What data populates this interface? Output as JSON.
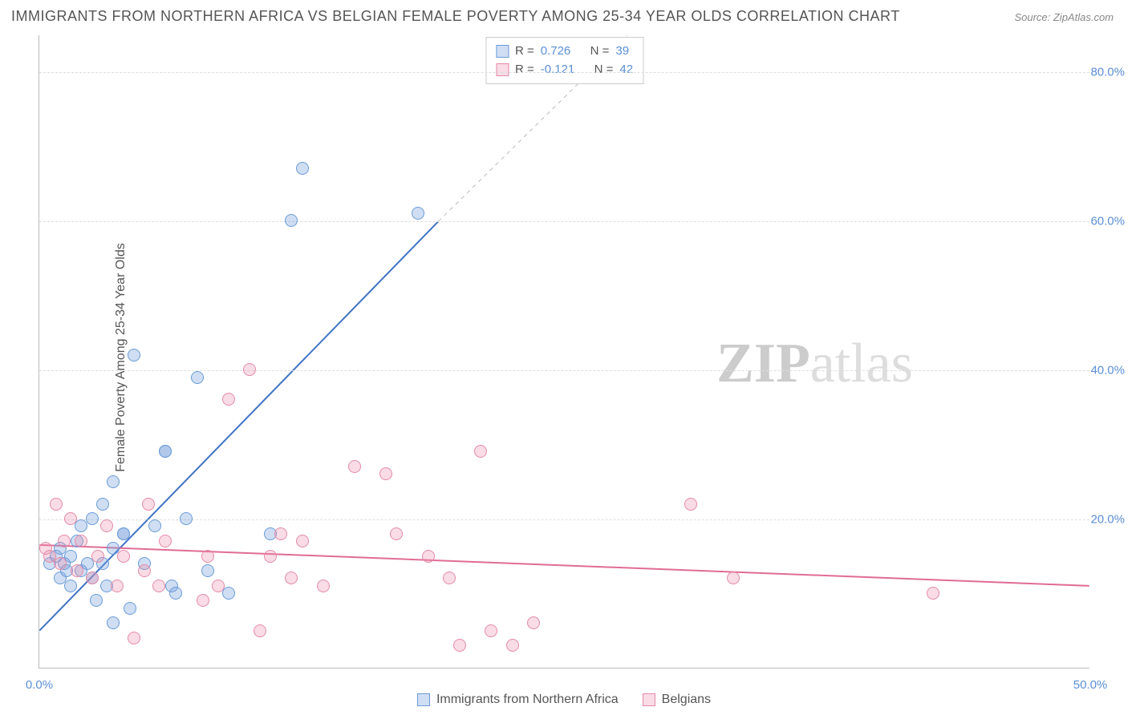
{
  "title": "IMMIGRANTS FROM NORTHERN AFRICA VS BELGIAN FEMALE POVERTY AMONG 25-34 YEAR OLDS CORRELATION CHART",
  "source": "Source: ZipAtlas.com",
  "ylabel": "Female Poverty Among 25-34 Year Olds",
  "watermark_a": "ZIP",
  "watermark_b": "atlas",
  "chart": {
    "type": "scatter",
    "xlim": [
      0,
      50
    ],
    "ylim": [
      0,
      85
    ],
    "xticks": [
      {
        "v": 0,
        "l": "0.0%"
      },
      {
        "v": 50,
        "l": "50.0%"
      }
    ],
    "yticks": [
      {
        "v": 20,
        "l": "20.0%"
      },
      {
        "v": 40,
        "l": "40.0%"
      },
      {
        "v": 60,
        "l": "60.0%"
      },
      {
        "v": 80,
        "l": "80.0%"
      }
    ],
    "grid_color": "#dddddd",
    "background_color": "#ffffff",
    "marker_radius": 8,
    "series": [
      {
        "name": "Immigrants from Northern Africa",
        "fill": "rgba(120,160,220,0.35)",
        "stroke": "#6a9bd8",
        "line_color": "#3f73c4",
        "line_width": 2,
        "trend": {
          "x1": 0,
          "y1": 5,
          "x2": 19,
          "y2": 60,
          "dash_after_x": 19,
          "dash_to_x": 28,
          "dash_to_y": 85
        },
        "R": "0.726",
        "N": "39",
        "points": [
          [
            0.5,
            14
          ],
          [
            0.8,
            15
          ],
          [
            1.0,
            12
          ],
          [
            1.0,
            16
          ],
          [
            1.2,
            14
          ],
          [
            1.3,
            13
          ],
          [
            1.5,
            11
          ],
          [
            1.5,
            15
          ],
          [
            1.8,
            17
          ],
          [
            2.0,
            13
          ],
          [
            2.0,
            19
          ],
          [
            2.3,
            14
          ],
          [
            2.5,
            12
          ],
          [
            2.5,
            20
          ],
          [
            2.7,
            9
          ],
          [
            3.0,
            14
          ],
          [
            3.0,
            22
          ],
          [
            3.2,
            11
          ],
          [
            3.5,
            16
          ],
          [
            3.5,
            25
          ],
          [
            3.5,
            6
          ],
          [
            4.0,
            18
          ],
          [
            4.0,
            18
          ],
          [
            4.3,
            8
          ],
          [
            4.5,
            42
          ],
          [
            5.0,
            14
          ],
          [
            5.5,
            19
          ],
          [
            6.0,
            29
          ],
          [
            6.0,
            29
          ],
          [
            6.3,
            11
          ],
          [
            6.5,
            10
          ],
          [
            7.0,
            20
          ],
          [
            7.5,
            39
          ],
          [
            8.0,
            13
          ],
          [
            9.0,
            10
          ],
          [
            11.0,
            18
          ],
          [
            12.0,
            60
          ],
          [
            12.5,
            67
          ],
          [
            18.0,
            61
          ]
        ]
      },
      {
        "name": "Belgians",
        "fill": "rgba(235,140,170,0.30)",
        "stroke": "#e48aa8",
        "line_color": "#e06c96",
        "line_width": 2,
        "trend": {
          "x1": 0,
          "y1": 16.5,
          "x2": 50,
          "y2": 11
        },
        "R": "-0.121",
        "N": "42",
        "points": [
          [
            0.3,
            16
          ],
          [
            0.5,
            15
          ],
          [
            0.8,
            22
          ],
          [
            1.0,
            14
          ],
          [
            1.2,
            17
          ],
          [
            1.5,
            20
          ],
          [
            1.8,
            13
          ],
          [
            2.0,
            17
          ],
          [
            2.5,
            12
          ],
          [
            2.8,
            15
          ],
          [
            3.2,
            19
          ],
          [
            3.7,
            11
          ],
          [
            4.0,
            15
          ],
          [
            4.5,
            4
          ],
          [
            5.0,
            13
          ],
          [
            5.2,
            22
          ],
          [
            5.7,
            11
          ],
          [
            6.0,
            17
          ],
          [
            7.8,
            9
          ],
          [
            8.0,
            15
          ],
          [
            8.5,
            11
          ],
          [
            9.0,
            36
          ],
          [
            10.0,
            40
          ],
          [
            10.5,
            5
          ],
          [
            11.0,
            15
          ],
          [
            11.5,
            18
          ],
          [
            12.0,
            12
          ],
          [
            12.5,
            17
          ],
          [
            13.5,
            11
          ],
          [
            15.0,
            27
          ],
          [
            16.5,
            26
          ],
          [
            17.0,
            18
          ],
          [
            18.5,
            15
          ],
          [
            19.5,
            12
          ],
          [
            20.0,
            3
          ],
          [
            21.0,
            29
          ],
          [
            21.5,
            5
          ],
          [
            22.5,
            3
          ],
          [
            23.5,
            6
          ],
          [
            31.0,
            22
          ],
          [
            33.0,
            12
          ],
          [
            42.5,
            10
          ]
        ]
      }
    ]
  },
  "stats_labels": {
    "R": "R =",
    "N": "N ="
  },
  "legend": [
    {
      "swatch_fill": "rgba(120,160,220,0.35)",
      "swatch_stroke": "#6a9bd8",
      "label": "Immigrants from Northern Africa"
    },
    {
      "swatch_fill": "rgba(235,140,170,0.30)",
      "swatch_stroke": "#e48aa8",
      "label": "Belgians"
    }
  ]
}
